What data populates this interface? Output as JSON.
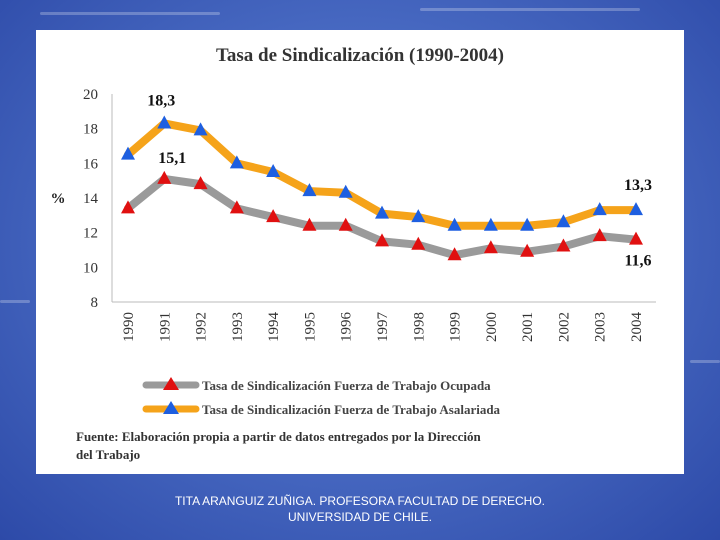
{
  "footer": {
    "line1": "TITA ARANGUIZ ZUÑIGA. PROFESORA FACULTAD DE DERECHO.",
    "line2": "UNIVERSIDAD DE CHILE."
  },
  "chart_data": {
    "type": "line",
    "title": "Tasa de Sindicalización (1990-2004)",
    "ylabel": "%",
    "xlabel": "",
    "ylim": [
      8,
      20
    ],
    "yticks": [
      8,
      10,
      12,
      14,
      16,
      18,
      20
    ],
    "grid": false,
    "legend_position": "bottom",
    "categories": [
      "1990",
      "1991",
      "1992",
      "1993",
      "1994",
      "1995",
      "1996",
      "1997",
      "1998",
      "1999",
      "2000",
      "2001",
      "2002",
      "2003",
      "2004"
    ],
    "series": [
      {
        "name": "Tasa de Sindicalización Fuerza de Trabajo Ocupada",
        "line_color": "#9a9a9a",
        "marker_color": "#e01010",
        "values": [
          13.4,
          15.1,
          14.8,
          13.4,
          12.9,
          12.4,
          12.4,
          11.5,
          11.3,
          10.7,
          11.1,
          10.9,
          11.2,
          11.8,
          11.6
        ]
      },
      {
        "name": "Tasa de Sindicalización Fuerza de Trabajo Asalariada",
        "line_color": "#f5a31a",
        "marker_color": "#1e5fe0",
        "values": [
          16.5,
          18.3,
          17.9,
          16.0,
          15.5,
          14.4,
          14.3,
          13.1,
          12.9,
          12.4,
          12.4,
          12.4,
          12.6,
          13.3,
          13.3
        ]
      }
    ],
    "annotations": [
      {
        "text": "18,3"
      },
      {
        "text": "15,1"
      },
      {
        "text": "13,3"
      },
      {
        "text": "11,6"
      }
    ],
    "source": "Fuente: Elaboración propia a partir de datos entregados por la Dirección del Trabajo"
  }
}
